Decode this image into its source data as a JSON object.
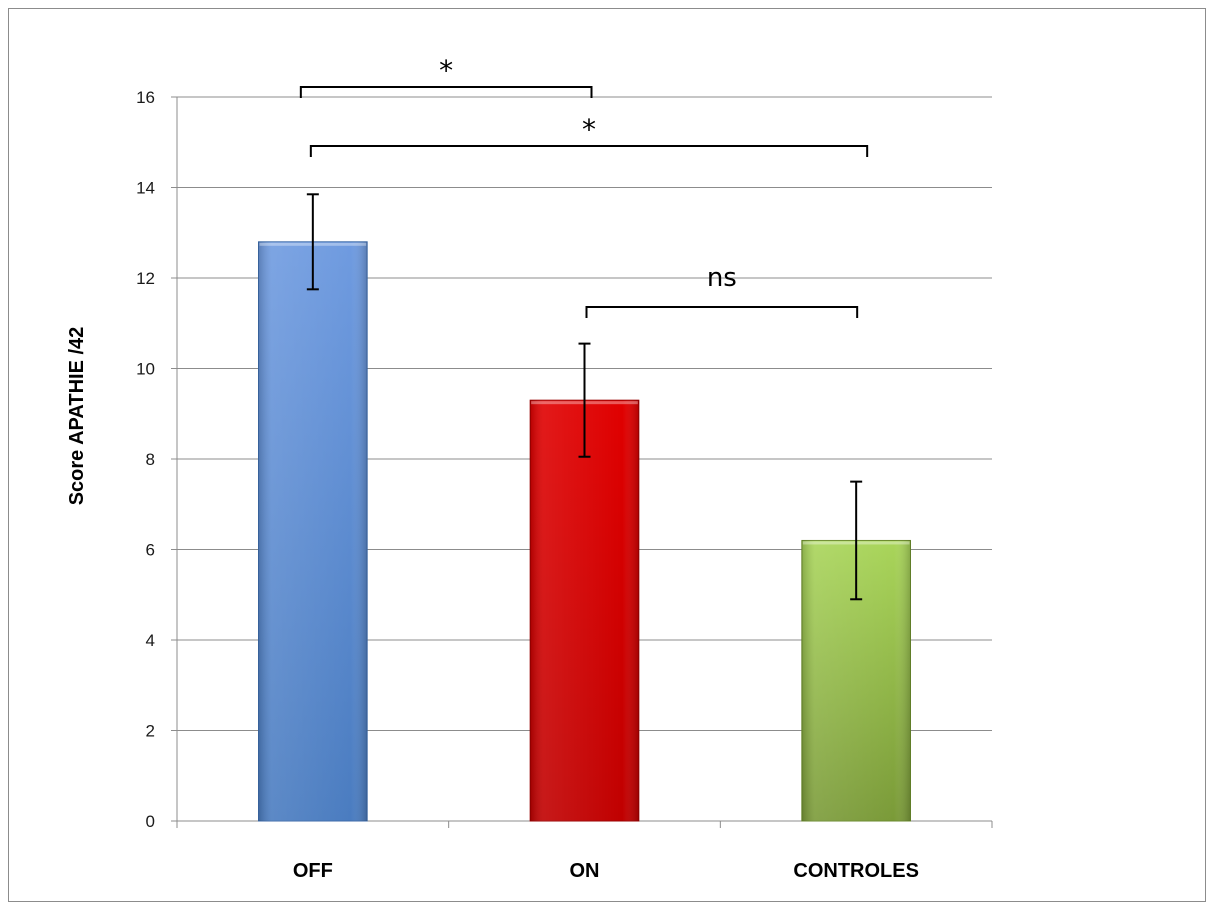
{
  "chart_data": {
    "type": "bar",
    "title": "",
    "xlabel": "",
    "ylabel": "Score APATHIE /42",
    "categories": [
      "OFF",
      "ON",
      "CONTROLES"
    ],
    "values": [
      12.8,
      9.3,
      6.2
    ],
    "error": [
      1.05,
      1.25,
      1.3
    ],
    "ylim": [
      0,
      16
    ],
    "yticks": [
      0,
      2,
      4,
      6,
      8,
      10,
      12,
      14,
      16
    ],
    "grid": true,
    "legend": "none",
    "series_colors": [
      {
        "top": "#6f9be0",
        "bottom": "#4a7cc0",
        "edge": "#3c6aa8"
      },
      {
        "top": "#e00000",
        "bottom": "#c00000",
        "edge": "#9a0000"
      },
      {
        "top": "#a9d55a",
        "bottom": "#7a9a38",
        "edge": "#6a8a2c"
      }
    ],
    "significance": [
      {
        "from": 0,
        "to": 1,
        "label": "*"
      },
      {
        "from": 0,
        "to": 2,
        "label": "*"
      },
      {
        "from": 1,
        "to": 2,
        "label": "ns"
      }
    ]
  }
}
